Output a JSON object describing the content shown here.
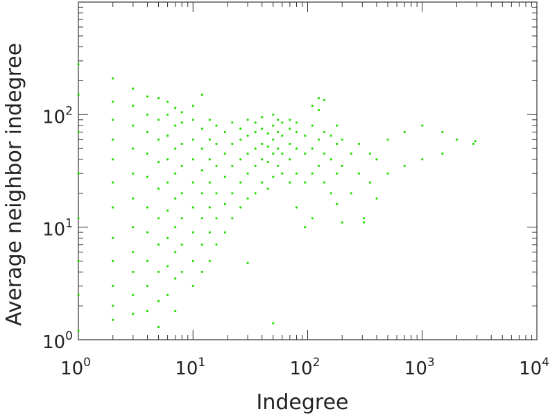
{
  "chart_data": {
    "type": "scatter",
    "title": "",
    "xlabel": "Indegree",
    "ylabel": "Average neighbor indegree",
    "x_scale": "log",
    "y_scale": "log",
    "xlim": [
      1,
      10000
    ],
    "ylim": [
      1,
      1000
    ],
    "grid": false,
    "legend": "none",
    "marker_color": "#22dd00",
    "x_ticks": [
      {
        "value": 1,
        "base": "10",
        "exp": "0"
      },
      {
        "value": 10,
        "base": "10",
        "exp": "1"
      },
      {
        "value": 100,
        "base": "10",
        "exp": "2"
      },
      {
        "value": 1000,
        "base": "10",
        "exp": "3"
      },
      {
        "value": 10000,
        "base": "10",
        "exp": "4"
      }
    ],
    "y_ticks": [
      {
        "value": 1,
        "base": "10",
        "exp": "0"
      },
      {
        "value": 10,
        "base": "10",
        "exp": "1"
      },
      {
        "value": 100,
        "base": "10",
        "exp": "2"
      }
    ],
    "series": [
      {
        "points": [
          [
            1,
            1.2
          ],
          [
            1,
            2.5
          ],
          [
            1,
            5
          ],
          [
            1,
            12
          ],
          [
            1,
            30
          ],
          [
            1,
            70
          ],
          [
            1,
            150
          ],
          [
            1,
            280
          ],
          [
            2,
            1.5
          ],
          [
            2,
            2
          ],
          [
            2,
            3
          ],
          [
            2,
            5
          ],
          [
            2,
            8
          ],
          [
            2,
            15
          ],
          [
            2,
            25
          ],
          [
            2,
            40
          ],
          [
            2,
            60
          ],
          [
            2,
            90
          ],
          [
            2,
            130
          ],
          [
            2,
            210
          ],
          [
            3,
            1.7
          ],
          [
            3,
            2.5
          ],
          [
            3,
            4
          ],
          [
            3,
            6
          ],
          [
            3,
            10
          ],
          [
            3,
            18
          ],
          [
            3,
            30
          ],
          [
            3,
            50
          ],
          [
            3,
            80
          ],
          [
            3,
            120
          ],
          [
            3,
            170
          ],
          [
            4,
            1.8
          ],
          [
            4,
            3
          ],
          [
            4,
            5
          ],
          [
            4,
            9
          ],
          [
            4,
            15
          ],
          [
            4,
            28
          ],
          [
            4,
            45
          ],
          [
            4,
            70
          ],
          [
            4,
            100
          ],
          [
            4,
            145
          ],
          [
            5,
            1.3
          ],
          [
            5,
            2.2
          ],
          [
            5,
            4
          ],
          [
            5,
            7
          ],
          [
            5,
            12
          ],
          [
            5,
            22
          ],
          [
            5,
            38
          ],
          [
            5,
            60
          ],
          [
            5,
            90
          ],
          [
            5,
            140
          ],
          [
            6,
            2.5
          ],
          [
            6,
            4.5
          ],
          [
            6,
            8
          ],
          [
            6,
            14
          ],
          [
            6,
            25
          ],
          [
            6,
            40
          ],
          [
            6,
            65
          ],
          [
            6,
            100
          ],
          [
            6,
            130
          ],
          [
            7,
            1.8
          ],
          [
            7,
            3.5
          ],
          [
            7,
            6
          ],
          [
            7,
            10
          ],
          [
            7,
            18
          ],
          [
            7,
            30
          ],
          [
            7,
            50
          ],
          [
            7,
            80
          ],
          [
            7,
            115
          ],
          [
            8,
            4
          ],
          [
            8,
            7
          ],
          [
            8,
            12
          ],
          [
            8,
            20
          ],
          [
            8,
            35
          ],
          [
            8,
            55
          ],
          [
            8,
            85
          ],
          [
            8,
            105
          ],
          [
            10,
            3
          ],
          [
            10,
            5
          ],
          [
            10,
            9
          ],
          [
            10,
            15
          ],
          [
            10,
            25
          ],
          [
            10,
            40
          ],
          [
            10,
            60
          ],
          [
            10,
            90
          ],
          [
            10,
            120
          ],
          [
            12,
            4
          ],
          [
            12,
            7
          ],
          [
            12,
            12
          ],
          [
            12,
            20
          ],
          [
            12,
            32
          ],
          [
            12,
            50
          ],
          [
            12,
            75
          ],
          [
            12,
            150
          ],
          [
            14,
            5
          ],
          [
            14,
            9
          ],
          [
            14,
            15
          ],
          [
            14,
            25
          ],
          [
            14,
            40
          ],
          [
            14,
            60
          ],
          [
            14,
            90
          ],
          [
            16,
            7
          ],
          [
            16,
            12
          ],
          [
            16,
            20
          ],
          [
            16,
            35
          ],
          [
            16,
            55
          ],
          [
            16,
            80
          ],
          [
            19,
            9
          ],
          [
            19,
            16
          ],
          [
            19,
            28
          ],
          [
            19,
            45
          ],
          [
            19,
            70
          ],
          [
            22,
            12
          ],
          [
            22,
            20
          ],
          [
            22,
            35
          ],
          [
            22,
            55
          ],
          [
            22,
            85
          ],
          [
            26,
            15
          ],
          [
            26,
            25
          ],
          [
            26,
            40
          ],
          [
            26,
            60
          ],
          [
            26,
            75
          ],
          [
            30,
            4.8
          ],
          [
            30,
            18
          ],
          [
            30,
            30
          ],
          [
            30,
            45
          ],
          [
            30,
            65
          ],
          [
            30,
            90
          ],
          [
            35,
            20
          ],
          [
            35,
            35
          ],
          [
            35,
            50
          ],
          [
            35,
            70
          ],
          [
            35,
            85
          ],
          [
            40,
            25
          ],
          [
            40,
            40
          ],
          [
            40,
            55
          ],
          [
            40,
            75
          ],
          [
            40,
            95
          ],
          [
            45,
            22
          ],
          [
            45,
            38
          ],
          [
            45,
            52
          ],
          [
            45,
            68
          ],
          [
            50,
            1.4
          ],
          [
            50,
            28
          ],
          [
            50,
            45
          ],
          [
            50,
            60
          ],
          [
            50,
            80
          ],
          [
            50,
            100
          ],
          [
            55,
            35
          ],
          [
            55,
            50
          ],
          [
            55,
            70
          ],
          [
            55,
            90
          ],
          [
            60,
            30
          ],
          [
            60,
            45
          ],
          [
            60,
            65
          ],
          [
            60,
            85
          ],
          [
            70,
            25
          ],
          [
            70,
            40
          ],
          [
            70,
            55
          ],
          [
            70,
            75
          ],
          [
            70,
            90
          ],
          [
            80,
            15
          ],
          [
            80,
            30
          ],
          [
            80,
            50
          ],
          [
            80,
            70
          ],
          [
            80,
            85
          ],
          [
            95,
            10
          ],
          [
            95,
            25
          ],
          [
            95,
            45
          ],
          [
            95,
            65
          ],
          [
            110,
            12
          ],
          [
            110,
            30
          ],
          [
            110,
            50
          ],
          [
            110,
            80
          ],
          [
            110,
            120
          ],
          [
            125,
            35
          ],
          [
            125,
            60
          ],
          [
            125,
            110
          ],
          [
            125,
            140
          ],
          [
            140,
            25
          ],
          [
            140,
            45
          ],
          [
            140,
            70
          ],
          [
            140,
            135
          ],
          [
            160,
            20
          ],
          [
            160,
            40
          ],
          [
            160,
            65
          ],
          [
            180,
            16
          ],
          [
            180,
            30
          ],
          [
            180,
            55
          ],
          [
            180,
            80
          ],
          [
            200,
            11
          ],
          [
            200,
            35
          ],
          [
            200,
            60
          ],
          [
            240,
            20
          ],
          [
            240,
            45
          ],
          [
            280,
            30
          ],
          [
            280,
            55
          ],
          [
            310,
            11
          ],
          [
            310,
            12
          ],
          [
            350,
            25
          ],
          [
            350,
            45
          ],
          [
            400,
            18
          ],
          [
            400,
            40
          ],
          [
            500,
            30
          ],
          [
            500,
            60
          ],
          [
            700,
            35
          ],
          [
            700,
            70
          ],
          [
            1000,
            40
          ],
          [
            1000,
            80
          ],
          [
            1500,
            45
          ],
          [
            1500,
            70
          ],
          [
            2000,
            60
          ],
          [
            2800,
            55
          ],
          [
            2900,
            58
          ]
        ]
      }
    ]
  }
}
